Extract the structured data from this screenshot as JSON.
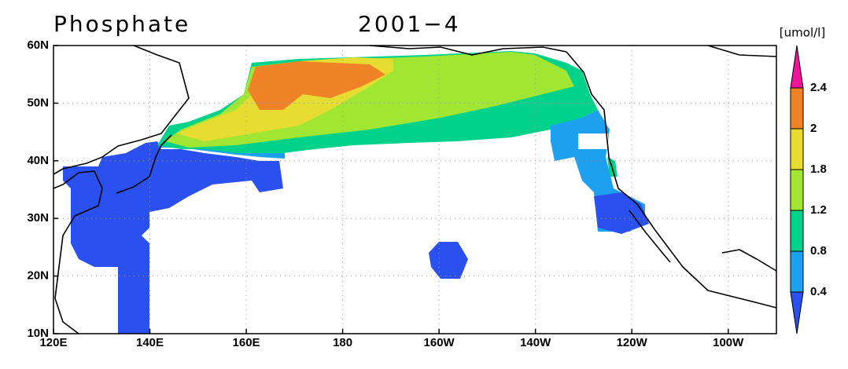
{
  "header": {
    "title": "Phosphate",
    "date": "2001−4"
  },
  "map": {
    "xlim": [
      120,
      270
    ],
    "ylim": [
      10,
      60
    ],
    "xticks": [
      {
        "value": 120,
        "label": "120E"
      },
      {
        "value": 140,
        "label": "140E"
      },
      {
        "value": 160,
        "label": "160E"
      },
      180,
      {
        "value": 200,
        "label": "160W"
      },
      {
        "value": 220,
        "label": "140W"
      },
      {
        "value": 240,
        "label": "120W"
      },
      {
        "value": 260,
        "label": "100W"
      }
    ],
    "yticks": [
      {
        "value": 10,
        "label": "10N"
      },
      {
        "value": 20,
        "label": "20N"
      },
      {
        "value": 30,
        "label": "30N"
      },
      {
        "value": 40,
        "label": "40N"
      },
      {
        "value": 50,
        "label": "50N"
      },
      {
        "value": 60,
        "label": "60N"
      }
    ],
    "grid": true
  },
  "colorbar": {
    "unit": "[umol/l]",
    "ticks": [
      0.4,
      0.8,
      1.2,
      1.8,
      2,
      2.4
    ],
    "colors": [
      "#2a50f0",
      "#1ea0f0",
      "#00d28c",
      "#a0e632",
      "#e6dc32",
      "#f08228",
      "#f0149a"
    ]
  }
}
